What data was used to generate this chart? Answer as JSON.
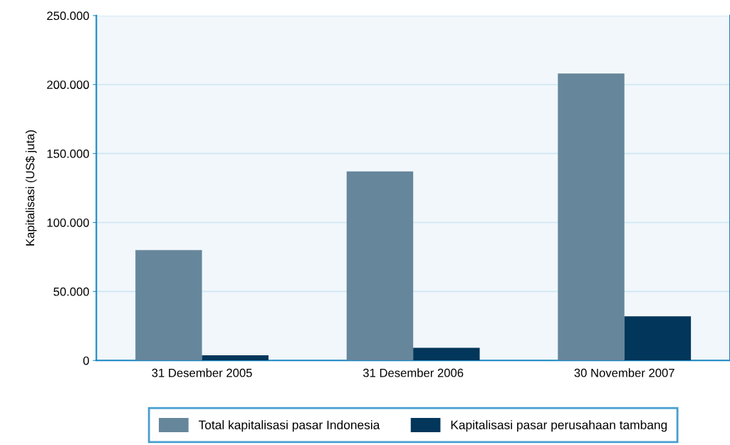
{
  "chart_data": {
    "type": "bar",
    "ylabel": "Kapitalisasi (US$ juta)",
    "categories": [
      "31 Desember 2005",
      "31 Desember 2006",
      "30 November 2007"
    ],
    "series": [
      {
        "name": "Total kapitalisasi pasar Indonesia",
        "color": "#66869b",
        "values": [
          80000,
          137000,
          208000
        ]
      },
      {
        "name": "Kapitalisasi pasar perusahaan tambang",
        "color": "#02365a",
        "values": [
          3800,
          9200,
          32000
        ]
      }
    ],
    "ylim": [
      0,
      250000
    ],
    "yticks": [
      {
        "value": 0,
        "label": "0"
      },
      {
        "value": 50000,
        "label": "50.000"
      },
      {
        "value": 100000,
        "label": "100.000"
      },
      {
        "value": 150000,
        "label": "150.000"
      },
      {
        "value": 200000,
        "label": "200.000"
      },
      {
        "value": 250000,
        "label": "250.000"
      }
    ],
    "grid": "y",
    "legend": "bottom"
  }
}
